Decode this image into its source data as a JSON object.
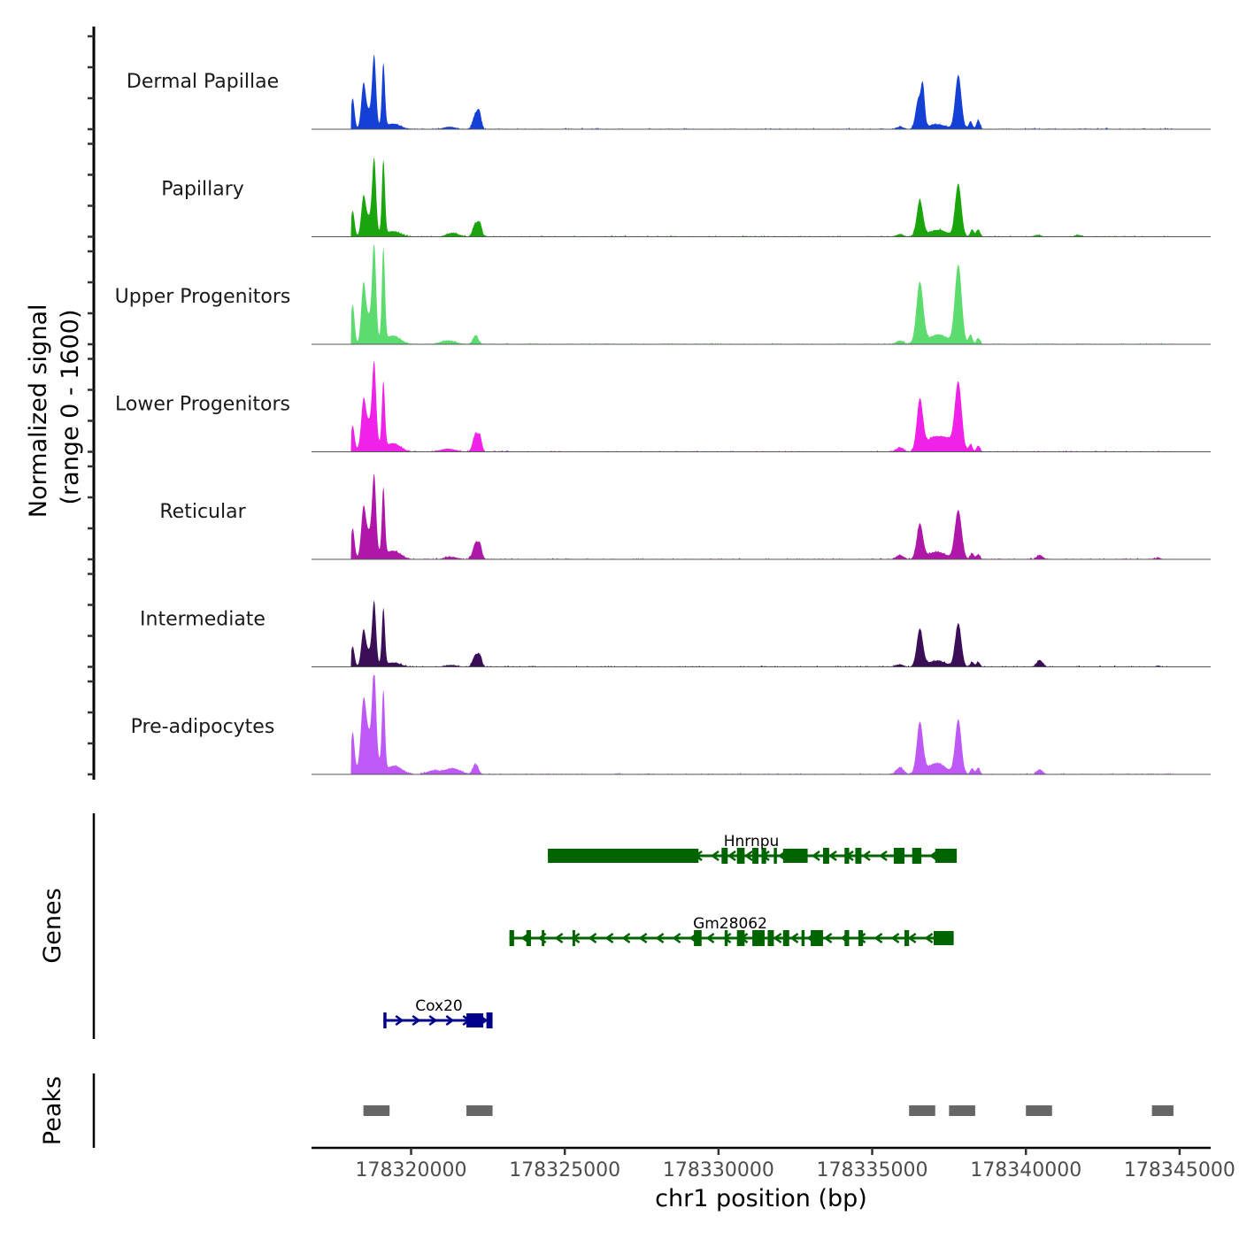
{
  "chart_data": {
    "type": "area",
    "subtype": "genome-coverage-tracks",
    "title": "",
    "xlabel": "chr1 position (bp)",
    "ylabel": "Normalized signal\n(range 0 - 1600)",
    "ylabel_lines": [
      "Normalized signal",
      "(range 0 - 1600)"
    ],
    "xlim": [
      178316750,
      178346000
    ],
    "ylim": [
      0,
      1600
    ],
    "x_ticks": [
      178320000,
      178325000,
      178330000,
      178335000,
      178340000,
      178345000
    ],
    "x_tick_labels": [
      "178320000",
      "178325000",
      "178330000",
      "178335000",
      "178340000",
      "178345000"
    ],
    "y_ticks_per_track": [
      0,
      500,
      1000,
      1500
    ],
    "grid": false,
    "legend": "none",
    "tracks": [
      {
        "name": "Dermal Papillae",
        "color": "#1440d6",
        "peaks": [
          [
            178318100,
            500,
            60
          ],
          [
            178318450,
            630,
            70
          ],
          [
            178318800,
            1020,
            60
          ],
          [
            178319100,
            1030,
            50
          ],
          [
            178318650,
            300,
            150
          ],
          [
            178319400,
            90,
            250
          ],
          [
            178321250,
            40,
            200
          ],
          [
            178322100,
            250,
            90
          ],
          [
            178322230,
            220,
            60
          ],
          [
            178335900,
            40,
            120
          ],
          [
            178336500,
            470,
            90
          ],
          [
            178336650,
            620,
            60
          ],
          [
            178337100,
            80,
            300
          ],
          [
            178337800,
            870,
            100
          ],
          [
            178338200,
            130,
            60
          ],
          [
            178338450,
            150,
            60
          ]
        ]
      },
      {
        "name": "Papillary",
        "color": "#1aa50d",
        "peaks": [
          [
            178318100,
            420,
            60
          ],
          [
            178318450,
            540,
            70
          ],
          [
            178318800,
            1080,
            60
          ],
          [
            178319100,
            1200,
            50
          ],
          [
            178318650,
            320,
            150
          ],
          [
            178319400,
            90,
            250
          ],
          [
            178321350,
            60,
            200
          ],
          [
            178322100,
            220,
            90
          ],
          [
            178322250,
            180,
            60
          ],
          [
            178335900,
            40,
            120
          ],
          [
            178336550,
            580,
            100
          ],
          [
            178337150,
            110,
            300
          ],
          [
            178337800,
            850,
            100
          ],
          [
            178338250,
            120,
            60
          ],
          [
            178338450,
            120,
            60
          ],
          [
            178340400,
            30,
            100
          ],
          [
            178341700,
            30,
            100
          ]
        ]
      },
      {
        "name": "Upper Progenitors",
        "color": "#5cdb6e",
        "peaks": [
          [
            178318100,
            640,
            60
          ],
          [
            178318450,
            820,
            70
          ],
          [
            178318800,
            1360,
            60
          ],
          [
            178319100,
            1500,
            50
          ],
          [
            178318650,
            450,
            150
          ],
          [
            178319400,
            140,
            250
          ],
          [
            178321200,
            60,
            250
          ],
          [
            178322100,
            140,
            90
          ],
          [
            178335900,
            60,
            120
          ],
          [
            178336550,
            990,
            110
          ],
          [
            178337150,
            160,
            300
          ],
          [
            178337800,
            1270,
            110
          ],
          [
            178338200,
            160,
            60
          ],
          [
            178338450,
            100,
            60
          ]
        ]
      },
      {
        "name": "Lower Progenitors",
        "color": "#f022e8",
        "peaks": [
          [
            178318100,
            420,
            60
          ],
          [
            178318450,
            600,
            70
          ],
          [
            178318800,
            1110,
            60
          ],
          [
            178319100,
            1060,
            50
          ],
          [
            178318650,
            500,
            180
          ],
          [
            178319400,
            140,
            250
          ],
          [
            178321200,
            50,
            250
          ],
          [
            178322100,
            290,
            90
          ],
          [
            178322250,
            200,
            60
          ],
          [
            178335900,
            70,
            120
          ],
          [
            178336550,
            820,
            100
          ],
          [
            178337000,
            230,
            250
          ],
          [
            178337450,
            180,
            200
          ],
          [
            178337800,
            1100,
            110
          ],
          [
            178338200,
            120,
            60
          ],
          [
            178338450,
            100,
            60
          ]
        ]
      },
      {
        "name": "Reticular",
        "color": "#ae17a8",
        "peaks": [
          [
            178318100,
            500,
            60
          ],
          [
            178318450,
            640,
            70
          ],
          [
            178318800,
            1070,
            60
          ],
          [
            178319100,
            1090,
            50
          ],
          [
            178318650,
            450,
            170
          ],
          [
            178319400,
            140,
            250
          ],
          [
            178321300,
            40,
            200
          ],
          [
            178322100,
            270,
            90
          ],
          [
            178322250,
            200,
            60
          ],
          [
            178335900,
            70,
            120
          ],
          [
            178336550,
            560,
            100
          ],
          [
            178337100,
            120,
            300
          ],
          [
            178337800,
            790,
            110
          ],
          [
            178338250,
            100,
            60
          ],
          [
            178338450,
            80,
            60
          ],
          [
            178340450,
            70,
            100
          ],
          [
            178344300,
            30,
            80
          ]
        ]
      },
      {
        "name": "Intermediate",
        "color": "#3b0e58",
        "peaks": [
          [
            178318100,
            330,
            60
          ],
          [
            178318450,
            500,
            70
          ],
          [
            178318800,
            910,
            60
          ],
          [
            178319100,
            920,
            50
          ],
          [
            178318650,
            260,
            150
          ],
          [
            178319400,
            70,
            250
          ],
          [
            178321300,
            30,
            200
          ],
          [
            178322100,
            200,
            90
          ],
          [
            178322250,
            150,
            60
          ],
          [
            178335900,
            40,
            120
          ],
          [
            178336550,
            600,
            100
          ],
          [
            178337100,
            100,
            300
          ],
          [
            178337800,
            700,
            100
          ],
          [
            178338250,
            80,
            60
          ],
          [
            178338450,
            80,
            60
          ],
          [
            178340450,
            110,
            100
          ],
          [
            178344300,
            20,
            80
          ]
        ]
      },
      {
        "name": "Pre-adipocytes",
        "color": "#be59f5",
        "peaks": [
          [
            178318100,
            670,
            60
          ],
          [
            178318450,
            840,
            80
          ],
          [
            178318800,
            1240,
            60
          ],
          [
            178319100,
            1270,
            50
          ],
          [
            178318650,
            650,
            200
          ],
          [
            178319450,
            140,
            250
          ],
          [
            178320700,
            60,
            200
          ],
          [
            178321350,
            100,
            250
          ],
          [
            178322100,
            170,
            90
          ],
          [
            178335900,
            110,
            120
          ],
          [
            178336550,
            820,
            100
          ],
          [
            178337100,
            180,
            300
          ],
          [
            178337800,
            880,
            100
          ],
          [
            178338250,
            100,
            60
          ],
          [
            178338450,
            100,
            60
          ],
          [
            178340450,
            80,
            100
          ]
        ]
      }
    ],
    "genes": [
      {
        "name": "Hnrnpu",
        "strand": "-",
        "color": "#006400",
        "row": 0,
        "start": 178324450,
        "end": 178337750,
        "exons": [
          [
            178324450,
            178329350
          ],
          [
            178330100,
            178330300
          ],
          [
            178330600,
            178330850
          ],
          [
            178331100,
            178331300
          ],
          [
            178331400,
            178331550
          ],
          [
            178331800,
            178331900
          ],
          [
            178332100,
            178332900
          ],
          [
            178333400,
            178333600
          ],
          [
            178334100,
            178334250
          ],
          [
            178334450,
            178334650
          ],
          [
            178335700,
            178336050
          ],
          [
            178336300,
            178336600
          ],
          [
            178337050,
            178337750
          ]
        ]
      },
      {
        "name": "Gm28062",
        "strand": "-",
        "color": "#006400",
        "row": 1,
        "start": 178323200,
        "end": 178337650,
        "exons": [
          [
            178323200,
            178323350
          ],
          [
            178323750,
            178323900
          ],
          [
            178324250,
            178324300
          ],
          [
            178325250,
            178325300
          ],
          [
            178329200,
            178329450
          ],
          [
            178330200,
            178330300
          ],
          [
            178330600,
            178330850
          ],
          [
            178331100,
            178331500
          ],
          [
            178331600,
            178331800
          ],
          [
            178332100,
            178332300
          ],
          [
            178332700,
            178332800
          ],
          [
            178333000,
            178333400
          ],
          [
            178334100,
            178334250
          ],
          [
            178334550,
            178334700
          ],
          [
            178336050,
            178336200
          ],
          [
            178337000,
            178337650
          ]
        ]
      },
      {
        "name": "Cox20",
        "strand": "+",
        "color": "#00008b",
        "row": 2,
        "start": 178319100,
        "end": 178322650,
        "exons": [
          [
            178319100,
            178319200
          ],
          [
            178321800,
            178322350
          ],
          [
            178322450,
            178322650
          ]
        ]
      }
    ],
    "peaks_track": {
      "color": "#666666",
      "regions": [
        [
          178318450,
          178319300
        ],
        [
          178321800,
          178322650
        ],
        [
          178336200,
          178337050
        ],
        [
          178337500,
          178338350
        ],
        [
          178340000,
          178340850
        ],
        [
          178344100,
          178344800
        ]
      ]
    },
    "panel_labels": {
      "genes": "Genes",
      "peaks": "Peaks"
    }
  }
}
